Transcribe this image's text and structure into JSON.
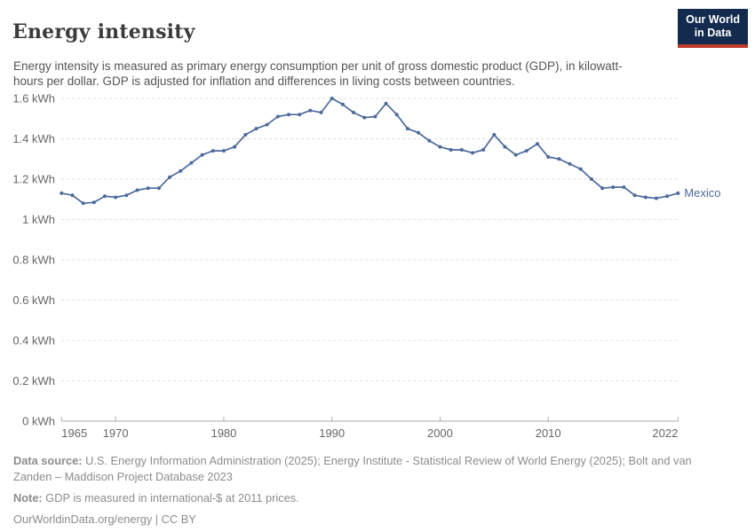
{
  "header": {
    "title": "Energy intensity",
    "subtitle": "Energy intensity is measured as primary energy consumption per unit of gross domestic product (GDP), in kilowatt-hours per dollar. GDP is adjusted for inflation and differences in living costs between countries.",
    "logo": {
      "line1": "Our World",
      "line2": "in Data"
    }
  },
  "chart_data": {
    "type": "line",
    "title": "Energy intensity",
    "unit": "kWh per dollar",
    "xlim": [
      1965,
      2022
    ],
    "ylim": [
      0,
      1.6
    ],
    "grid": "horizontal-dashed",
    "legend_position": "end-of-line-label",
    "x_ticks": [
      1965,
      1970,
      1980,
      1990,
      2000,
      2010,
      2022
    ],
    "y_ticks": [
      0,
      0.2,
      0.4,
      0.6,
      0.8,
      1,
      1.2,
      1.4,
      1.6
    ],
    "y_tick_labels": [
      "0 kWh",
      "0.2 kWh",
      "0.4 kWh",
      "0.6 kWh",
      "0.8 kWh",
      "1 kWh",
      "1.2 kWh",
      "1.4 kWh",
      "1.6 kWh"
    ],
    "series": [
      {
        "name": "Mexico",
        "color": "#4C6A9C",
        "x": [
          1965,
          1966,
          1967,
          1968,
          1969,
          1970,
          1971,
          1972,
          1973,
          1974,
          1975,
          1976,
          1977,
          1978,
          1979,
          1980,
          1981,
          1982,
          1983,
          1984,
          1985,
          1986,
          1987,
          1988,
          1989,
          1990,
          1991,
          1992,
          1993,
          1994,
          1995,
          1996,
          1997,
          1998,
          1999,
          2000,
          2001,
          2002,
          2003,
          2004,
          2005,
          2006,
          2007,
          2008,
          2009,
          2010,
          2011,
          2012,
          2013,
          2014,
          2015,
          2016,
          2017,
          2018,
          2019,
          2020,
          2021,
          2022
        ],
        "values": [
          1.13,
          1.12,
          1.08,
          1.085,
          1.115,
          1.11,
          1.12,
          1.145,
          1.155,
          1.155,
          1.21,
          1.24,
          1.28,
          1.32,
          1.34,
          1.34,
          1.36,
          1.42,
          1.45,
          1.47,
          1.51,
          1.52,
          1.52,
          1.54,
          1.53,
          1.6,
          1.57,
          1.53,
          1.505,
          1.51,
          1.575,
          1.52,
          1.45,
          1.43,
          1.39,
          1.36,
          1.345,
          1.345,
          1.33,
          1.345,
          1.42,
          1.36,
          1.32,
          1.34,
          1.375,
          1.31,
          1.3,
          1.275,
          1.25,
          1.2,
          1.155,
          1.16,
          1.16,
          1.12,
          1.11,
          1.105,
          1.115,
          1.13
        ]
      }
    ]
  },
  "footer": {
    "data_source_label": "Data source:",
    "data_source": "U.S. Energy Information Administration (2025); Energy Institute - Statistical Review of World Energy (2025); Bolt and van Zanden – Maddison Project Database 2023",
    "note_label": "Note:",
    "note": "GDP is measured in international-$ at 2011 prices.",
    "link": "OurWorldinData.org/energy | CC BY"
  },
  "colors": {
    "line": "#4C6A9C",
    "gridline": "#DDDDDD",
    "axis": "#ABABAB",
    "tick_text": "#666666",
    "logo_bg": "#122B4E",
    "logo_accent": "#C0392B"
  }
}
